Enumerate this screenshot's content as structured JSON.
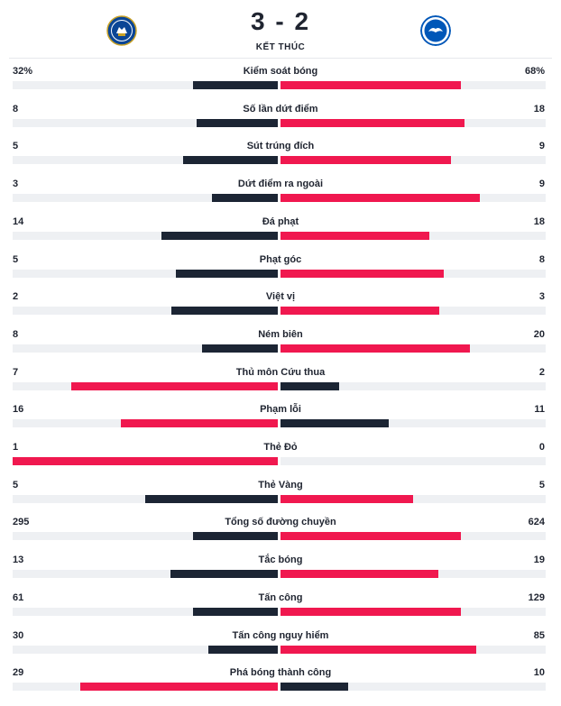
{
  "match": {
    "score": "3 - 2",
    "status": "KẾT THÚC",
    "home_logo_icon": "chelsea-crest-icon",
    "away_logo_icon": "brighton-crest-icon"
  },
  "colors": {
    "dark": "#1c2534",
    "red": "#f0184f",
    "track": "#eef0f3"
  },
  "stats": [
    {
      "label": "Kiểm soát bóng",
      "home": "32%",
      "away": "68%",
      "home_value": 32,
      "away_value": 68
    },
    {
      "label": "Số lần dứt điểm",
      "home": "8",
      "away": "18",
      "home_value": 8,
      "away_value": 18
    },
    {
      "label": "Sút trúng đích",
      "home": "5",
      "away": "9",
      "home_value": 5,
      "away_value": 9
    },
    {
      "label": "Dứt điểm ra ngoài",
      "home": "3",
      "away": "9",
      "home_value": 3,
      "away_value": 9
    },
    {
      "label": "Đá phạt",
      "home": "14",
      "away": "18",
      "home_value": 14,
      "away_value": 18
    },
    {
      "label": "Phạt góc",
      "home": "5",
      "away": "8",
      "home_value": 5,
      "away_value": 8
    },
    {
      "label": "Việt vị",
      "home": "2",
      "away": "3",
      "home_value": 2,
      "away_value": 3
    },
    {
      "label": "Ném biên",
      "home": "8",
      "away": "20",
      "home_value": 8,
      "away_value": 20
    },
    {
      "label": "Thủ môn Cứu thua",
      "home": "7",
      "away": "2",
      "home_value": 7,
      "away_value": 2
    },
    {
      "label": "Phạm lỗi",
      "home": "16",
      "away": "11",
      "home_value": 16,
      "away_value": 11
    },
    {
      "label": "Thẻ Đỏ",
      "home": "1",
      "away": "0",
      "home_value": 1,
      "away_value": 0
    },
    {
      "label": "Thẻ Vàng",
      "home": "5",
      "away": "5",
      "home_value": 5,
      "away_value": 5
    },
    {
      "label": "Tổng số đường chuyền",
      "home": "295",
      "away": "624",
      "home_value": 295,
      "away_value": 624
    },
    {
      "label": "Tắc bóng",
      "home": "13",
      "away": "19",
      "home_value": 13,
      "away_value": 19
    },
    {
      "label": "Tấn công",
      "home": "61",
      "away": "129",
      "home_value": 61,
      "away_value": 129
    },
    {
      "label": "Tấn công nguy hiểm",
      "home": "30",
      "away": "85",
      "home_value": 30,
      "away_value": 85
    },
    {
      "label": "Phá bóng thành công",
      "home": "29",
      "away": "10",
      "home_value": 29,
      "away_value": 10
    }
  ]
}
